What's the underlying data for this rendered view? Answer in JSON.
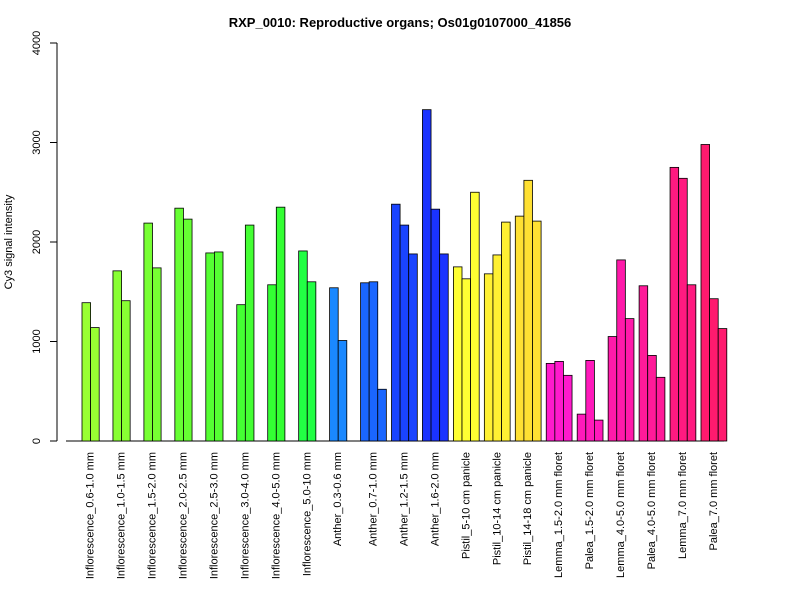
{
  "chart_data": {
    "type": "bar",
    "title": "RXP_0010: Reproductive organs; Os01g0107000_41856",
    "ylabel": "Cy3 signal intensity",
    "xlabel": "",
    "ylim": [
      0,
      4000
    ],
    "yticks": [
      0,
      1000,
      2000,
      3000,
      4000
    ],
    "grid": false,
    "legend": "none",
    "groups": [
      {
        "label": "Inflorescence_0.6-1.0 mm",
        "color": "#99FF33",
        "values": [
          1390,
          1140
        ]
      },
      {
        "label": "Inflorescence_1.0-1.5 mm",
        "color": "#88FF33",
        "values": [
          1710,
          1410
        ]
      },
      {
        "label": "Inflorescence_1.5-2.0 mm",
        "color": "#77FF33",
        "values": [
          2190,
          1740
        ]
      },
      {
        "label": "Inflorescence_2.0-2.5 mm",
        "color": "#66FF33",
        "values": [
          2340,
          2230
        ]
      },
      {
        "label": "Inflorescence_2.5-3.0 mm",
        "color": "#55FF33",
        "values": [
          1890,
          1900
        ]
      },
      {
        "label": "Inflorescence_3.0-4.0 mm",
        "color": "#44FF33",
        "values": [
          1370,
          2170
        ]
      },
      {
        "label": "Inflorescence_4.0-5.0 mm",
        "color": "#33FF33",
        "values": [
          1570,
          2350
        ]
      },
      {
        "label": "Inflorescence_5.0-10 mm",
        "color": "#22FF44",
        "values": [
          1910,
          1600
        ]
      },
      {
        "label": "Anther_0.3-0.6 mm",
        "color": "#1A88FF",
        "values": [
          1540,
          1010
        ]
      },
      {
        "label": "Anther_0.7-1.0 mm",
        "color": "#1A66FF",
        "values": [
          1590,
          1600,
          520
        ]
      },
      {
        "label": "Anther_1.2-1.5 mm",
        "color": "#1A44FF",
        "values": [
          2380,
          2170,
          1880
        ]
      },
      {
        "label": "Anther_1.6-2.0 mm",
        "color": "#1A33FF",
        "values": [
          3330,
          2330,
          1880
        ]
      },
      {
        "label": "Pistil_5-10 cm panicle",
        "color": "#FFFF33",
        "values": [
          1750,
          1630,
          2500
        ]
      },
      {
        "label": "Pistil_10-14 cm panicle",
        "color": "#FFF033",
        "values": [
          1680,
          1870,
          2200
        ]
      },
      {
        "label": "Pistil_14-18 cm panicle",
        "color": "#FFE033",
        "values": [
          2260,
          2620,
          2210
        ]
      },
      {
        "label": "Lemma_1.5-2.0 mm floret",
        "color": "#FF1ACC",
        "values": [
          780,
          800,
          660
        ]
      },
      {
        "label": "Palea_1.5-2.0 mm floret",
        "color": "#FF1ABB",
        "values": [
          270,
          810,
          210
        ]
      },
      {
        "label": "Lemma_4.0-5.0 mm floret",
        "color": "#FF1AAA",
        "values": [
          1050,
          1820,
          1230
        ]
      },
      {
        "label": "Palea_4.0-5.0 mm floret",
        "color": "#FF1A99",
        "values": [
          1560,
          860,
          640
        ]
      },
      {
        "label": "Lemma_7.0 mm floret",
        "color": "#FF1A80",
        "values": [
          2750,
          2640,
          1570
        ]
      },
      {
        "label": "Palea_7.0 mm floret",
        "color": "#FF1A6E",
        "values": [
          2980,
          1430,
          1130
        ]
      }
    ]
  }
}
